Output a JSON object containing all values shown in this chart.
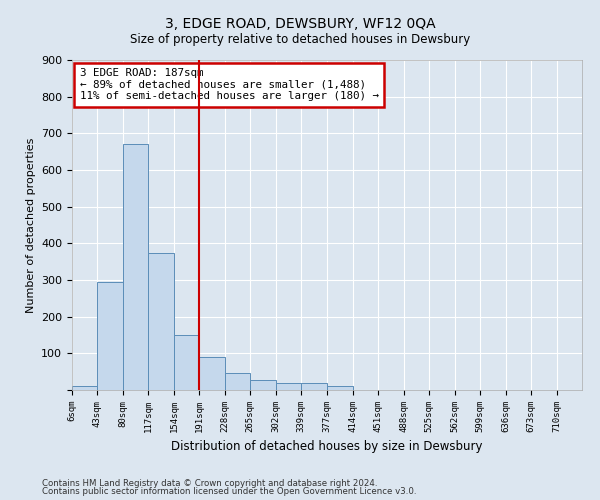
{
  "title": "3, EDGE ROAD, DEWSBURY, WF12 0QA",
  "subtitle": "Size of property relative to detached houses in Dewsbury",
  "xlabel": "Distribution of detached houses by size in Dewsbury",
  "ylabel": "Number of detached properties",
  "annotation_line1": "3 EDGE ROAD: 187sqm",
  "annotation_line2": "← 89% of detached houses are smaller (1,488)",
  "annotation_line3": "11% of semi-detached houses are larger (180) →",
  "bin_edges": [
    6,
    43,
    80,
    117,
    154,
    191,
    228,
    265,
    302,
    339,
    377,
    414,
    451,
    488,
    525,
    562,
    599,
    636,
    673,
    710,
    747
  ],
  "bar_heights": [
    10,
    295,
    670,
    375,
    150,
    90,
    47,
    27,
    20,
    20,
    10,
    0,
    0,
    0,
    0,
    0,
    0,
    0,
    0,
    0
  ],
  "bar_color": "#c5d8ec",
  "bar_edge_color": "#5b8db8",
  "vline_color": "#cc0000",
  "vline_x": 191,
  "ylim": [
    0,
    900
  ],
  "yticks": [
    0,
    100,
    200,
    300,
    400,
    500,
    600,
    700,
    800,
    900
  ],
  "footer_line1": "Contains HM Land Registry data © Crown copyright and database right 2024.",
  "footer_line2": "Contains public sector information licensed under the Open Government Licence v3.0.",
  "bg_color": "#dce6f0",
  "plot_bg_color": "#dce6f0",
  "annotation_box_color": "#ffffff",
  "annotation_box_edge": "#cc0000"
}
